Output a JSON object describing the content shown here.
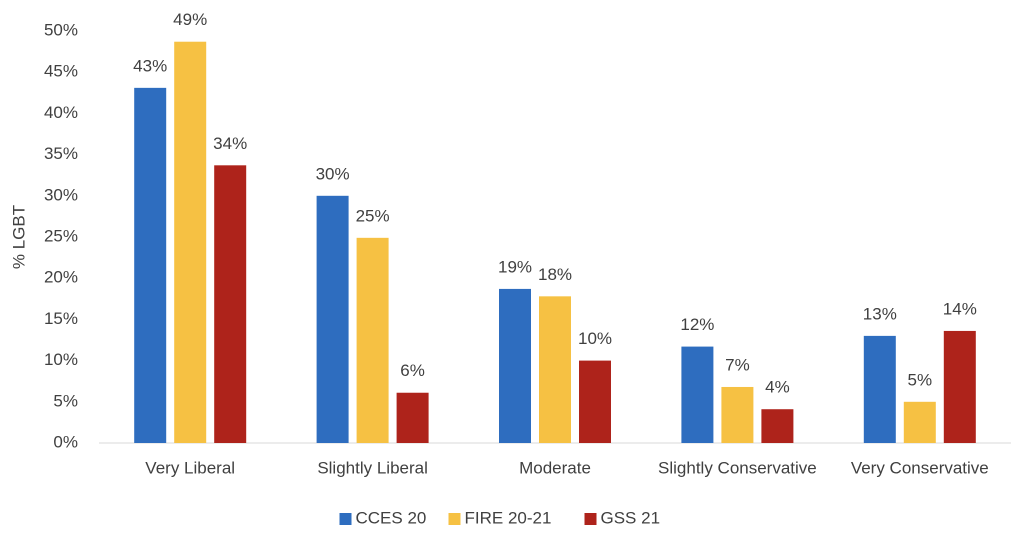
{
  "chart_data": {
    "type": "bar",
    "y_label": "% LGBT",
    "categories": [
      "Very Liberal",
      "Slightly Liberal",
      "Moderate",
      "Slightly Conservative",
      "Very Conservative"
    ],
    "series": [
      {
        "name": "CCES 20",
        "color": "#2e6dbf",
        "values": [
          43.1,
          30.0,
          18.7,
          11.7,
          13.0
        ],
        "value_labels": [
          "43%",
          "30%",
          "19%",
          "12%",
          "13%"
        ]
      },
      {
        "name": "FIRE 20-21",
        "color": "#f6c143",
        "values": [
          48.7,
          24.9,
          17.8,
          6.8,
          5.0
        ],
        "value_labels": [
          "49%",
          "25%",
          "18%",
          "7%",
          "5%"
        ]
      },
      {
        "name": "GSS 21",
        "color": "#ae231b",
        "values": [
          33.7,
          6.1,
          10.0,
          4.1,
          13.6
        ],
        "value_labels": [
          "34%",
          "6%",
          "10%",
          "4%",
          "14%"
        ]
      }
    ],
    "ylim": [
      0,
      50
    ],
    "yticks": [
      {
        "value": 0,
        "label": "0%"
      },
      {
        "value": 5,
        "label": "5%"
      },
      {
        "value": 10,
        "label": "10%"
      },
      {
        "value": 15,
        "label": "15%"
      },
      {
        "value": 20,
        "label": "20%"
      },
      {
        "value": 25,
        "label": "25%"
      },
      {
        "value": 30,
        "label": "30%"
      },
      {
        "value": 35,
        "label": "35%"
      },
      {
        "value": 40,
        "label": "40%"
      },
      {
        "value": 45,
        "label": "45%"
      },
      {
        "value": 50,
        "label": "50%"
      }
    ],
    "grid": false,
    "legend": "bottom"
  }
}
